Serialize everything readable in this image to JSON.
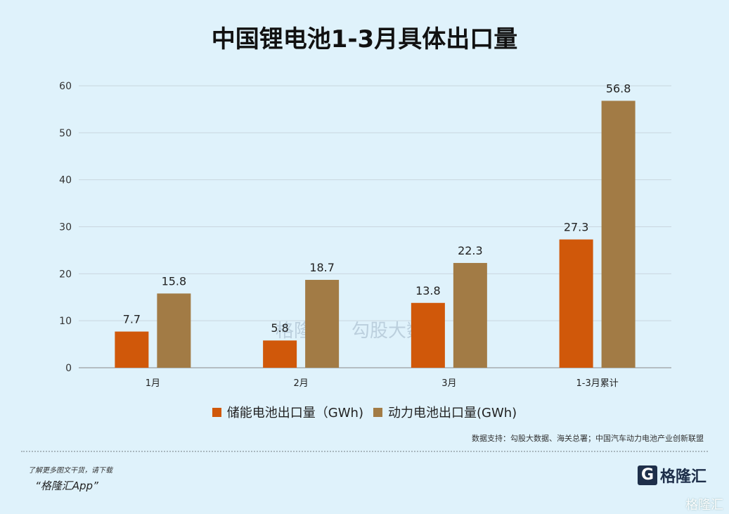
{
  "chart_data": {
    "type": "bar",
    "title": "中国锂电池1-3月具体出口量",
    "categories": [
      "1月",
      "2月",
      "3月",
      "1-3月累计"
    ],
    "series": [
      {
        "name": "储能电池出口量（GWh)",
        "values": [
          7.7,
          5.8,
          13.8,
          27.3
        ],
        "color": "#d0580a"
      },
      {
        "name": "动力电池出口量(GWh)",
        "values": [
          15.8,
          18.7,
          22.3,
          56.8
        ],
        "color": "#a27b45"
      }
    ],
    "yticks": [
      0,
      10,
      20,
      30,
      40,
      50,
      60
    ],
    "ylim": [
      0,
      60
    ],
    "grid": true,
    "legend": "bottom",
    "xlabel": "",
    "ylabel": ""
  },
  "footer": {
    "source": "数据支持：勾股大数据、海关总署；中国汽车动力电池产业创新联盟",
    "promo_line1": "了解更多图文干货，请下载",
    "promo_line2": "“格隆汇App”",
    "logo_text": "格隆汇",
    "watermark": "格隆汇",
    "center_watermark_1": "格隆汇",
    "center_watermark_2": "勾股大数据"
  }
}
